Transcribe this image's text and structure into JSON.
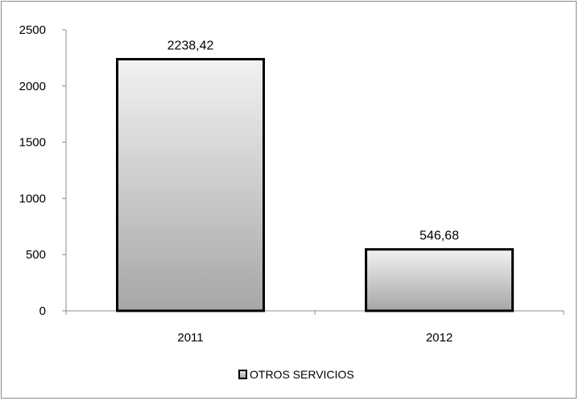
{
  "chart_data": {
    "type": "bar",
    "categories": [
      "2011",
      "2012"
    ],
    "series": [
      {
        "name": "OTROS SERVICIOS",
        "values": [
          2238.42,
          546.68
        ],
        "data_labels": [
          "2238,42",
          "546,68"
        ],
        "color": "#c8c8c8"
      }
    ],
    "ylim": [
      0,
      2500
    ],
    "yticks": [
      0,
      500,
      1000,
      1500,
      2000,
      2500
    ],
    "ytick_labels": [
      "0",
      "500",
      "1000",
      "1500",
      "2000",
      "2500"
    ],
    "grid": false,
    "legend": "bottom",
    "title": "",
    "xlabel": "",
    "ylabel": ""
  }
}
